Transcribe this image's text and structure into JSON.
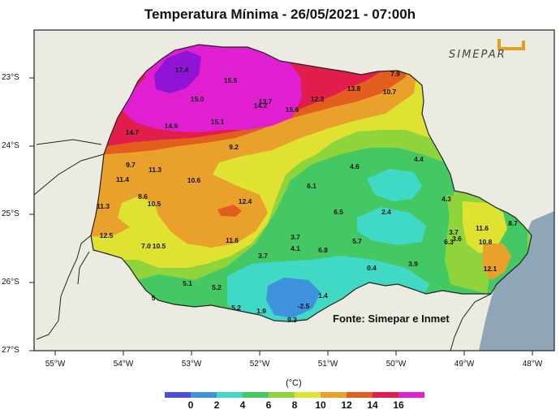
{
  "title": "Temperatura Mínima - 26/05/2021 - 07:00h",
  "logo": "SIMEPAR",
  "source_note": "Fonte: Simepar e Inmet",
  "unit": "(°C)",
  "lat_labels": [
    "23°S",
    "24°S",
    "25°S",
    "26°S",
    "27°S"
  ],
  "lon_labels": [
    "55°W",
    "54°W",
    "53°W",
    "52°W",
    "51°W",
    "50°W",
    "49°W",
    "48°W"
  ],
  "legend": {
    "ticks": [
      "0",
      "2",
      "4",
      "6",
      "8",
      "10",
      "12",
      "14",
      "16"
    ],
    "colors": [
      "#4b50d8",
      "#3f92dd",
      "#3fd9c6",
      "#44c863",
      "#8fd43a",
      "#e0e232",
      "#e9a12c",
      "#e25d1e",
      "#e01d4b",
      "#e01fd1",
      "#8f14d6"
    ]
  },
  "palette": {
    "ocean": "#8fa5b8",
    "land": "#ebebe1",
    "v1": "#3f92dd",
    "v3": "#3fd9c6",
    "v5": "#44c863",
    "v7": "#8fd43a",
    "v9": "#e0e232",
    "v11": "#e9a12c",
    "v13": "#e25d1e",
    "v15": "#e01d4b",
    "v16": "#e01fd1",
    "v17": "#8f14d6"
  },
  "readings": [
    {
      "value": "17.4"
    },
    {
      "value": "15.5"
    },
    {
      "value": "15.0"
    },
    {
      "value": "13.7"
    },
    {
      "value": "14.2"
    },
    {
      "value": "15.6"
    },
    {
      "value": "12.3"
    },
    {
      "value": "13.8"
    },
    {
      "value": "7.9"
    },
    {
      "value": "10.7"
    },
    {
      "value": "14.7"
    },
    {
      "value": "14.6"
    },
    {
      "value": "15.1"
    },
    {
      "value": "9.2"
    },
    {
      "value": "9.7"
    },
    {
      "value": "11.3"
    },
    {
      "value": "11.4"
    },
    {
      "value": "10.6"
    },
    {
      "value": "4.6"
    },
    {
      "value": "4.4"
    },
    {
      "value": "6.1"
    },
    {
      "value": "8.6"
    },
    {
      "value": "10.5"
    },
    {
      "value": "12.4"
    },
    {
      "value": "4.3"
    },
    {
      "value": "11.3"
    },
    {
      "value": "6.5"
    },
    {
      "value": "2.4"
    },
    {
      "value": "12.5"
    },
    {
      "value": "7.0"
    },
    {
      "value": "10.5"
    },
    {
      "value": "11.6"
    },
    {
      "value": "3.7"
    },
    {
      "value": "4.1"
    },
    {
      "value": "6.8"
    },
    {
      "value": "5.7"
    },
    {
      "value": "3.7"
    },
    {
      "value": "6.3"
    },
    {
      "value": "3.6"
    },
    {
      "value": "11.6"
    },
    {
      "value": "10.8"
    },
    {
      "value": "8.7"
    },
    {
      "value": "3.7"
    },
    {
      "value": "0.4"
    },
    {
      "value": "3.9"
    },
    {
      "value": "12.1"
    },
    {
      "value": "5.1"
    },
    {
      "value": "5.2"
    },
    {
      "value": "1.4"
    },
    {
      "value": "5"
    },
    {
      "value": "5.2"
    },
    {
      "value": "1.9"
    },
    {
      "value": "-2.5"
    },
    {
      "value": "9.3"
    }
  ]
}
